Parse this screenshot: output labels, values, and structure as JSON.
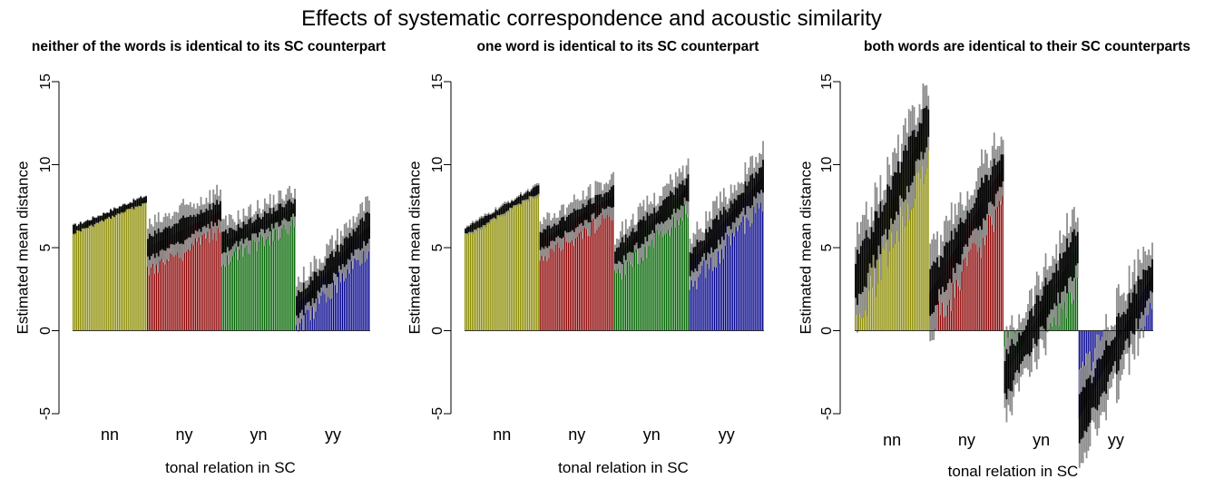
{
  "figure": {
    "title": "Effects of systematic correspondence and acoustic similarity"
  },
  "chart_data": [
    {
      "type": "bar",
      "title": "neither of the words is identical to its SC counterpart",
      "xlabel": "tonal relation in SC",
      "ylabel": "Estimated mean distance",
      "ylim": [
        -5,
        15
      ],
      "yticks": [
        -5,
        0,
        5,
        10,
        15
      ],
      "categories": [
        "nn",
        "ny",
        "yn",
        "yy"
      ],
      "colors": [
        "#8b8b00",
        "#8b0000",
        "#006400",
        "#00008b"
      ],
      "series": [
        {
          "name": "nn",
          "n": 42,
          "start": 6.1,
          "end": 7.9,
          "curve": 0.45,
          "ci_inner": 0.2,
          "ci_outer": 0.25
        },
        {
          "name": "ny",
          "n": 42,
          "start": 5.0,
          "end": 7.2,
          "curve": 0.9,
          "ci_inner": 0.6,
          "ci_outer": 1.3
        },
        {
          "name": "yn",
          "n": 42,
          "start": 5.3,
          "end": 7.4,
          "curve": 0.9,
          "ci_inner": 0.5,
          "ci_outer": 1.1
        },
        {
          "name": "yy",
          "n": 42,
          "start": 1.5,
          "end": 6.3,
          "curve": 0.45,
          "ci_inner": 0.7,
          "ci_outer": 1.4
        }
      ]
    },
    {
      "type": "bar",
      "title": "one word is identical to its SC counterpart",
      "xlabel": "tonal relation in SC",
      "ylabel": "Estimated mean distance",
      "ylim": [
        -5,
        15
      ],
      "yticks": [
        -5,
        0,
        5,
        10,
        15
      ],
      "categories": [
        "nn",
        "ny",
        "yn",
        "yy"
      ],
      "colors": [
        "#8b8b00",
        "#8b0000",
        "#006400",
        "#00008b"
      ],
      "series": [
        {
          "name": "nn",
          "n": 42,
          "start": 6.0,
          "end": 8.5,
          "curve": 0.45,
          "ci_inner": 0.2,
          "ci_outer": 0.3
        },
        {
          "name": "ny",
          "n": 42,
          "start": 5.4,
          "end": 8.1,
          "curve": 0.9,
          "ci_inner": 0.5,
          "ci_outer": 1.1
        },
        {
          "name": "yn",
          "n": 42,
          "start": 4.4,
          "end": 8.6,
          "curve": 1.1,
          "ci_inner": 0.6,
          "ci_outer": 1.3
        },
        {
          "name": "yy",
          "n": 42,
          "start": 4.0,
          "end": 9.3,
          "curve": 1.1,
          "ci_inner": 0.7,
          "ci_outer": 1.5
        }
      ]
    },
    {
      "type": "bar",
      "title": "both words are identical to their SC counterparts",
      "xlabel": "tonal relation in SC",
      "ylabel": "Estimated mean distance",
      "ylim": [
        -5,
        15
      ],
      "yticks": [
        -5,
        0,
        5,
        10,
        15
      ],
      "categories": [
        "nn",
        "ny",
        "yn",
        "yy"
      ],
      "colors": [
        "#8b8b00",
        "#8b0000",
        "#006400",
        "#00008b"
      ],
      "series": [
        {
          "name": "nn",
          "n": 42,
          "start": 3.0,
          "end": 12.5,
          "curve": 0.8,
          "ci_inner": 1.2,
          "ci_outer": 2.4
        },
        {
          "name": "ny",
          "n": 42,
          "start": 2.3,
          "end": 9.8,
          "curve": 0.8,
          "ci_inner": 1.1,
          "ci_outer": 2.3
        },
        {
          "name": "yn",
          "n": 42,
          "start": -2.8,
          "end": 5.0,
          "curve": 0.8,
          "ci_inner": 1.2,
          "ci_outer": 2.3
        },
        {
          "name": "yy",
          "n": 42,
          "start": -5.3,
          "end": 3.3,
          "curve": 0.75,
          "ci_inner": 1.2,
          "ci_outer": 2.4
        }
      ]
    }
  ]
}
